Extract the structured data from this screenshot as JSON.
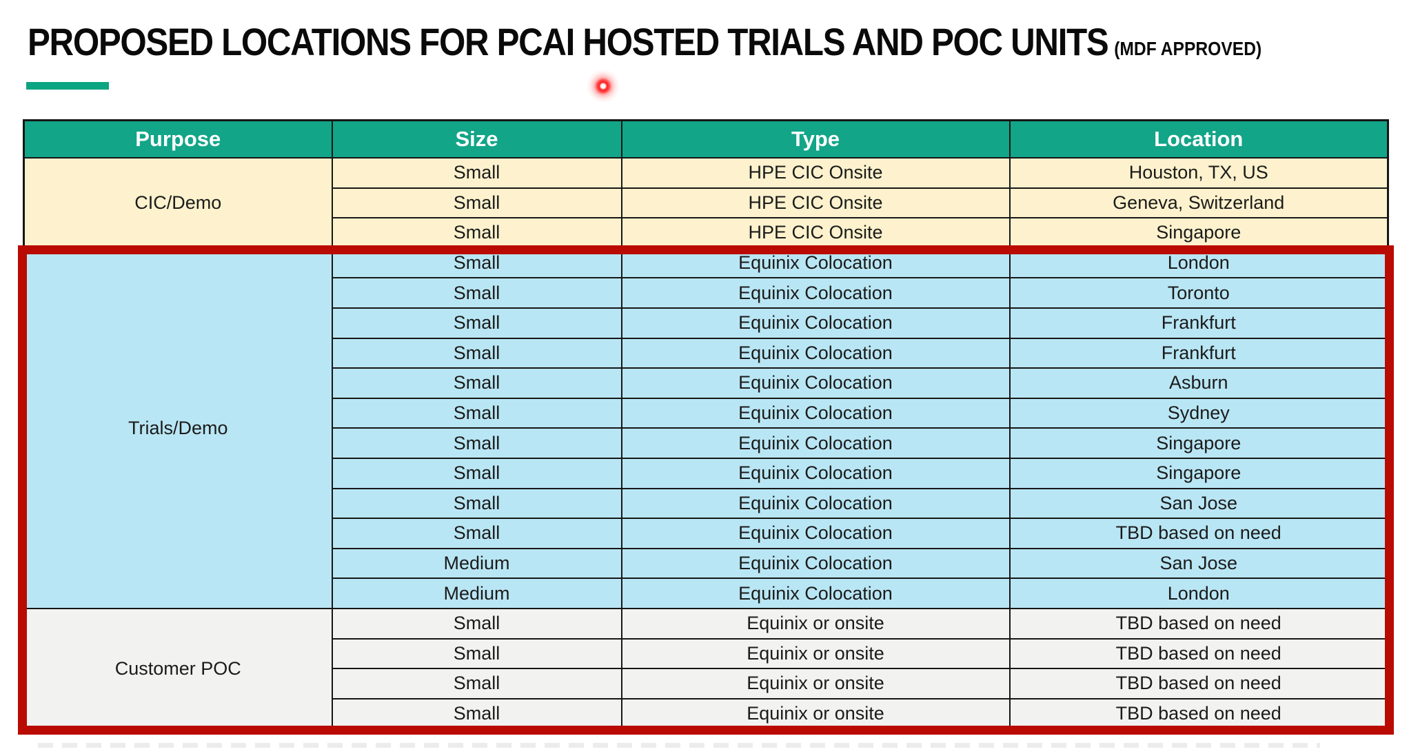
{
  "page": {
    "title_main": "PROPOSED LOCATIONS FOR PCAI HOSTED TRIALS AND POC UNITS",
    "title_suffix": "(MDF APPROVED)"
  },
  "colors": {
    "header_green": "#12a588",
    "accent_green": "#0ca581",
    "cic_demo_bg": "#fdf2cd",
    "trials_demo_bg": "#b9e6f4",
    "customer_poc_bg": "#f2f2f1",
    "highlight_red": "#b90b01",
    "laser_red": "#ff1c1c"
  },
  "table": {
    "columns": [
      "Purpose",
      "Size",
      "Type",
      "Location"
    ],
    "sections": [
      {
        "purpose": "CIC/Demo",
        "bg": "bg-cream",
        "rows": [
          {
            "size": "Small",
            "type": "HPE CIC Onsite",
            "location": "Houston, TX, US"
          },
          {
            "size": "Small",
            "type": "HPE CIC Onsite",
            "location": "Geneva, Switzerland"
          },
          {
            "size": "Small",
            "type": "HPE CIC Onsite",
            "location": "Singapore"
          }
        ]
      },
      {
        "purpose": "Trials/Demo",
        "bg": "bg-blue",
        "rows": [
          {
            "size": "Small",
            "type": "Equinix Colocation",
            "location": "London"
          },
          {
            "size": "Small",
            "type": "Equinix Colocation",
            "location": "Toronto"
          },
          {
            "size": "Small",
            "type": "Equinix Colocation",
            "location": "Frankfurt"
          },
          {
            "size": "Small",
            "type": "Equinix Colocation",
            "location": "Frankfurt"
          },
          {
            "size": "Small",
            "type": "Equinix Colocation",
            "location": "Asburn"
          },
          {
            "size": "Small",
            "type": "Equinix Colocation",
            "location": "Sydney"
          },
          {
            "size": "Small",
            "type": "Equinix Colocation",
            "location": "Singapore"
          },
          {
            "size": "Small",
            "type": "Equinix Colocation",
            "location": "Singapore"
          },
          {
            "size": "Small",
            "type": "Equinix Colocation",
            "location": "San Jose"
          },
          {
            "size": "Small",
            "type": "Equinix Colocation",
            "location": "TBD based on need"
          },
          {
            "size": "Medium",
            "type": "Equinix Colocation",
            "location": "San Jose"
          },
          {
            "size": "Medium",
            "type": "Equinix Colocation",
            "location": "London"
          }
        ]
      },
      {
        "purpose": "Customer POC",
        "bg": "bg-gray",
        "rows": [
          {
            "size": "Small",
            "type": "Equinix or onsite",
            "location": "TBD based on need"
          },
          {
            "size": "Small",
            "type": "Equinix or onsite",
            "location": "TBD based on need"
          },
          {
            "size": "Small",
            "type": "Equinix or onsite",
            "location": "TBD based on need"
          },
          {
            "size": "Small",
            "type": "Equinix or onsite",
            "location": "TBD based on need"
          }
        ]
      }
    ]
  },
  "annotations": {
    "highlight_box": "red rectangle around Trials/Demo and Customer POC sections",
    "laser_pointer": "red laser pointer dot below title"
  }
}
